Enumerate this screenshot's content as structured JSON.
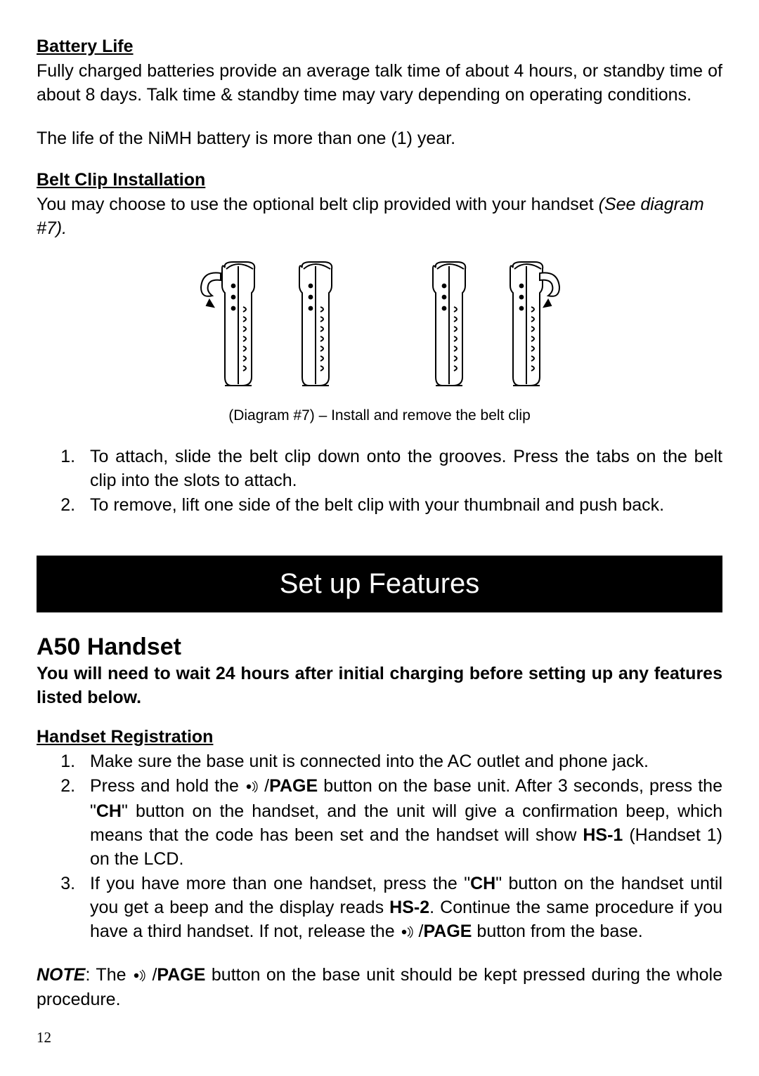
{
  "batteryLife": {
    "heading": "Battery Life",
    "p1": "Fully charged batteries provide an average talk time of about 4 hours, or standby time of about 8 days. Talk time & standby time may vary depending on operating conditions.",
    "p2": "The life of the NiMH battery is more than one (1) year."
  },
  "beltClip": {
    "heading": "Belt Clip Installation",
    "introPrefix": "You may choose to use the optional belt clip provided with your handset ",
    "introRef": "(See diagram #7).",
    "caption": "(Diagram #7) – Install and remove the belt clip",
    "item1": "To attach, slide the belt clip down onto the grooves. Press the tabs on the belt clip into the slots to attach.",
    "item2": "To remove, lift one side of the belt clip with your thumbnail and push back."
  },
  "banner": "Set up Features",
  "a50": {
    "title": "A50 Handset",
    "warn": "You will need to wait 24 hours after initial charging before setting up any features listed below."
  },
  "reg": {
    "heading": "Handset Registration",
    "i1": "Make sure the base unit is connected into the AC outlet and phone jack.",
    "i2a": "Press and hold the ",
    "i2b": " /",
    "i2b2": "PAGE",
    "i2c": " button on the base unit.  After 3 seconds, press the \"",
    "i2d": "CH",
    "i2e": "\" button on the handset, and the unit will give a confirmation beep, which means that the code has been set and the handset will show ",
    "i2f": "HS-1",
    "i2g": " (Handset 1) on the LCD.",
    "i3a": "If you have more than one handset, press the \"",
    "i3b": "CH",
    "i3c": "\" button on the handset until you get a beep and the display reads ",
    "i3d": "HS-2",
    "i3e": ". Continue the same procedure if you have a third handset. If not, release the ",
    "i3f": " /",
    "i3f2": "PAGE",
    "i3g": " button from the base."
  },
  "note": {
    "label": "NOTE",
    "a": ": The ",
    "b": " /",
    "b2": "PAGE",
    "c": " button on the base unit should be kept pressed during the whole procedure."
  },
  "pageNumber": "12",
  "diagram": {
    "handsetCount": 4,
    "clipLeftOn": 0,
    "clipRightOn": 3,
    "gapAfterIndex": 1,
    "stroke": "#000000",
    "fill": "#ffffff"
  }
}
